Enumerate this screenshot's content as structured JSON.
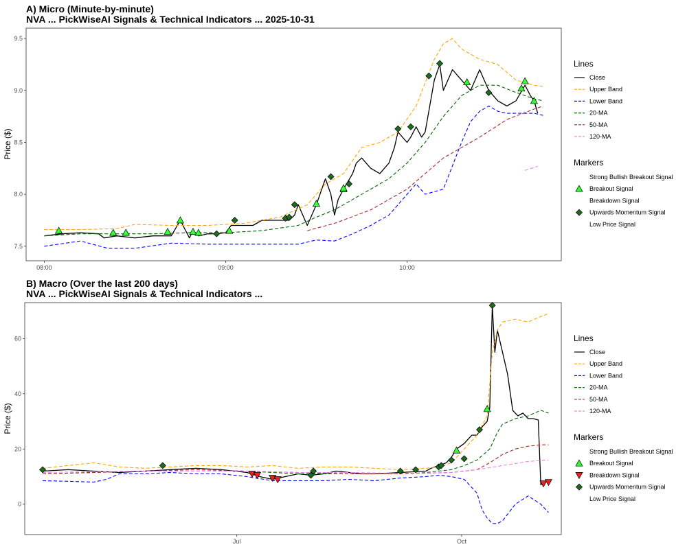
{
  "chart_data": [
    {
      "type": "line",
      "title": "A) Micro (Minute-by-minute)",
      "subtitle": "NVA ... PickWiseAI Signals & Technical Indicators ... 2025-10-31",
      "xlabel": "",
      "ylabel": "Price ($)",
      "xlim": [
        7.9,
        10.85
      ],
      "ylim": [
        7.36,
        9.6
      ],
      "x_ticks": [
        {
          "value": 8.0,
          "label": "08:00"
        },
        {
          "value": 9.0,
          "label": "09:00"
        },
        {
          "value": 10.0,
          "label": "10:00"
        }
      ],
      "y_ticks": [
        {
          "value": 7.5,
          "label": "7.5"
        },
        {
          "value": 8.0,
          "label": "8.0"
        },
        {
          "value": 8.5,
          "label": "8.5"
        },
        {
          "value": 9.0,
          "label": "9.0"
        },
        {
          "value": 9.5,
          "label": "9.5"
        }
      ],
      "grid": false,
      "legend_position": "right",
      "legend": {
        "lines_title": "Lines",
        "lines": [
          {
            "label": "Close",
            "color": "#000000",
            "dash": "solid"
          },
          {
            "label": "Upper Band",
            "color": "#FFA500",
            "dash": "dashed"
          },
          {
            "label": "Lower Band",
            "color": "#0000FF",
            "dash": "dashed"
          },
          {
            "label": "20-MA",
            "color": "#006400",
            "dash": "dashed"
          },
          {
            "label": "50-MA",
            "color": "#A52A2A",
            "dash": "dashed"
          },
          {
            "label": "120-MA",
            "color": "#EE82EE",
            "dash": "dashed"
          }
        ],
        "markers_title": "Markers",
        "markers": [
          {
            "label": "Strong Bullish Breakout Signal",
            "shape": "none"
          },
          {
            "label": "Breakout Signal",
            "shape": "triangle-up",
            "color": "#33FF33"
          },
          {
            "label": "Breakdown Signal",
            "shape": "none"
          },
          {
            "label": "Upwards Momentum Signal",
            "shape": "diamond",
            "color": "#1E6B1E"
          },
          {
            "label": "Low Price Signal",
            "shape": "none"
          }
        ]
      },
      "series": [
        {
          "name": "Close",
          "color": "#000000",
          "dash": "solid",
          "x": [
            8.0,
            8.1,
            8.2,
            8.3,
            8.33,
            8.4,
            8.5,
            8.6,
            8.7,
            8.75,
            8.8,
            8.82,
            8.85,
            8.9,
            8.95,
            9.0,
            9.03,
            9.05,
            9.1,
            9.15,
            9.2,
            9.25,
            9.3,
            9.35,
            9.38,
            9.4,
            9.45,
            9.5,
            9.55,
            9.58,
            9.6,
            9.62,
            9.65,
            9.7,
            9.72,
            9.75,
            9.8,
            9.85,
            9.9,
            9.93,
            9.95,
            10.0,
            10.02,
            10.05,
            10.08,
            10.1,
            10.15,
            10.18,
            10.2,
            10.25,
            10.3,
            10.35,
            10.4,
            10.45,
            10.5,
            10.55,
            10.6,
            10.65,
            10.68,
            10.7,
            10.72
          ],
          "y": [
            7.6,
            7.62,
            7.63,
            7.62,
            7.58,
            7.6,
            7.58,
            7.6,
            7.6,
            7.75,
            7.58,
            7.65,
            7.6,
            7.62,
            7.62,
            7.63,
            7.7,
            7.7,
            7.7,
            7.7,
            7.75,
            7.75,
            7.75,
            7.75,
            7.8,
            7.9,
            7.7,
            7.9,
            8.15,
            8.0,
            7.8,
            7.95,
            8.05,
            8.2,
            8.3,
            8.35,
            8.25,
            8.2,
            8.3,
            8.45,
            8.6,
            8.5,
            8.55,
            8.65,
            8.55,
            8.6,
            9.1,
            9.25,
            9.0,
            9.2,
            9.1,
            9.0,
            9.2,
            9.0,
            8.9,
            8.85,
            8.9,
            9.05,
            8.95,
            8.9,
            8.78
          ]
        },
        {
          "name": "Upper Band",
          "color": "#FFA500",
          "dash": "dashed",
          "x": [
            8.0,
            8.2,
            8.4,
            8.5,
            8.7,
            8.9,
            9.1,
            9.3,
            9.45,
            9.55,
            9.65,
            9.75,
            9.85,
            9.95,
            10.05,
            10.15,
            10.2,
            10.25,
            10.3,
            10.4,
            10.5,
            10.6,
            10.7,
            10.75
          ],
          "y": [
            7.66,
            7.66,
            7.67,
            7.71,
            7.7,
            7.7,
            7.72,
            7.78,
            7.9,
            8.1,
            8.2,
            8.45,
            8.5,
            8.6,
            8.85,
            9.3,
            9.45,
            9.5,
            9.4,
            9.3,
            9.25,
            9.1,
            9.05,
            9.04
          ]
        },
        {
          "name": "Lower Band",
          "color": "#0000FF",
          "dash": "dashed",
          "x": [
            8.0,
            8.2,
            8.35,
            8.5,
            8.7,
            8.9,
            9.1,
            9.3,
            9.4,
            9.5,
            9.6,
            9.7,
            9.8,
            9.9,
            9.95,
            10.05,
            10.1,
            10.2,
            10.3,
            10.35,
            10.4,
            10.45,
            10.5,
            10.55,
            10.6,
            10.7,
            10.75
          ],
          "y": [
            7.5,
            7.55,
            7.48,
            7.48,
            7.53,
            7.52,
            7.52,
            7.52,
            7.52,
            7.56,
            7.55,
            7.62,
            7.7,
            7.8,
            7.9,
            8.1,
            8.0,
            8.05,
            8.5,
            8.7,
            8.8,
            8.85,
            8.8,
            8.78,
            8.78,
            8.78,
            8.76
          ]
        },
        {
          "name": "20-MA",
          "color": "#006400",
          "dash": "dashed",
          "x": [
            8.0,
            8.2,
            8.4,
            8.6,
            8.8,
            9.0,
            9.2,
            9.4,
            9.5,
            9.6,
            9.7,
            9.8,
            9.9,
            10.0,
            10.1,
            10.2,
            10.3,
            10.4,
            10.5,
            10.6,
            10.7,
            10.75
          ],
          "y": [
            7.6,
            7.62,
            7.62,
            7.62,
            7.63,
            7.63,
            7.65,
            7.7,
            7.78,
            7.85,
            7.95,
            8.05,
            8.15,
            8.3,
            8.5,
            8.75,
            8.95,
            9.05,
            9.05,
            8.98,
            8.92,
            8.9
          ]
        },
        {
          "name": "50-MA",
          "color": "#A52A2A",
          "dash": "dashed",
          "x": [
            9.45,
            9.6,
            9.8,
            10.0,
            10.2,
            10.4,
            10.55,
            10.7,
            10.75
          ],
          "y": [
            7.65,
            7.72,
            7.85,
            8.05,
            8.35,
            8.55,
            8.72,
            8.82,
            8.85
          ]
        },
        {
          "name": "120-MA",
          "color": "#EE82EE",
          "dash": "dashed",
          "x": [
            10.65,
            10.72
          ],
          "y": [
            8.23,
            8.27
          ]
        }
      ],
      "markers": [
        {
          "type": "Breakout Signal",
          "x": [
            8.08,
            8.38,
            8.45,
            8.68,
            8.75,
            8.82,
            8.85,
            9.02,
            9.5,
            9.65,
            9.65,
            10.33,
            10.63,
            10.65,
            10.7
          ],
          "y": [
            7.65,
            7.63,
            7.63,
            7.64,
            7.75,
            7.64,
            7.63,
            7.65,
            7.91,
            8.05,
            8.06,
            9.08,
            9.02,
            9.09,
            8.9
          ]
        },
        {
          "type": "Upwards Momentum Signal",
          "x": [
            8.95,
            9.05,
            9.33,
            9.35,
            9.38,
            9.58,
            9.68,
            9.95,
            10.02,
            10.12,
            10.18,
            10.45
          ],
          "y": [
            7.62,
            7.75,
            7.77,
            7.78,
            7.9,
            8.17,
            8.1,
            8.63,
            8.65,
            9.14,
            9.26,
            8.98
          ]
        }
      ]
    },
    {
      "type": "line",
      "title": "B) Macro (Over the last 200 days)",
      "subtitle": "NVA ... PickWiseAI Signals & Technical Indicators ...",
      "xlabel": "",
      "ylabel": "Price ($)",
      "xlim": [
        -7,
        203
      ],
      "ylim": [
        -11,
        73
      ],
      "x_ticks": [
        {
          "value": 76,
          "label": "Jul"
        },
        {
          "value": 164,
          "label": "Oct"
        }
      ],
      "y_ticks": [
        {
          "value": 0,
          "label": "0"
        },
        {
          "value": 20,
          "label": "20"
        },
        {
          "value": 40,
          "label": "40"
        },
        {
          "value": 60,
          "label": "60"
        }
      ],
      "grid": false,
      "legend_position": "right",
      "legend": {
        "lines_title": "Lines",
        "lines": [
          {
            "label": "Close",
            "color": "#000000",
            "dash": "solid"
          },
          {
            "label": "Upper Band",
            "color": "#FFA500",
            "dash": "dashed"
          },
          {
            "label": "Lower Band",
            "color": "#0000FF",
            "dash": "dashed"
          },
          {
            "label": "20-MA",
            "color": "#006400",
            "dash": "dashed"
          },
          {
            "label": "50-MA",
            "color": "#A52A2A",
            "dash": "dashed"
          },
          {
            "label": "120-MA",
            "color": "#EE82EE",
            "dash": "dashed"
          }
        ],
        "markers_title": "Markers",
        "markers": [
          {
            "label": "Strong Bullish Breakout Signal",
            "shape": "none"
          },
          {
            "label": "Breakout Signal",
            "shape": "triangle-up",
            "color": "#33FF33"
          },
          {
            "label": "Breakdown Signal",
            "shape": "triangle-down",
            "color": "#EE2222"
          },
          {
            "label": "Upwards Momentum Signal",
            "shape": "diamond",
            "color": "#1E6B1E"
          },
          {
            "label": "Low Price Signal",
            "shape": "none"
          }
        ]
      },
      "series": [
        {
          "name": "Close",
          "color": "#000000",
          "dash": "solid",
          "x": [
            0,
            10,
            20,
            30,
            40,
            50,
            60,
            70,
            80,
            85,
            90,
            95,
            100,
            105,
            110,
            115,
            120,
            125,
            130,
            140,
            150,
            152,
            155,
            158,
            160,
            162,
            165,
            168,
            170,
            172,
            174,
            175,
            176,
            177,
            178,
            180,
            182,
            184,
            186,
            188,
            190,
            192,
            194,
            195,
            196,
            198
          ],
          "y": [
            12,
            12.5,
            12,
            11.5,
            12,
            12.5,
            13,
            12.5,
            11.5,
            10,
            9,
            10,
            11,
            10.5,
            11,
            12,
            11.5,
            11,
            11,
            11.5,
            12,
            13,
            14,
            15,
            17,
            20,
            22,
            25,
            25,
            28,
            30,
            35,
            72,
            55,
            63,
            55,
            47,
            34,
            32,
            33,
            31,
            31,
            30.5,
            7,
            8,
            8
          ]
        },
        {
          "name": "Upper Band",
          "color": "#FFA500",
          "dash": "dashed",
          "x": [
            0,
            10,
            20,
            30,
            40,
            50,
            60,
            70,
            80,
            90,
            100,
            110,
            120,
            130,
            140,
            150,
            155,
            160,
            165,
            170,
            174,
            176,
            178,
            180,
            185,
            190,
            195,
            198
          ],
          "y": [
            13,
            14,
            15,
            13.5,
            13,
            13.5,
            14,
            14,
            13.5,
            14,
            13,
            13.5,
            13.5,
            13,
            12.5,
            13,
            13.5,
            15,
            20,
            25,
            32,
            55,
            63,
            66,
            67,
            66,
            68,
            69
          ]
        },
        {
          "name": "Lower Band",
          "color": "#0000FF",
          "dash": "dashed",
          "x": [
            0,
            10,
            20,
            25,
            30,
            40,
            50,
            60,
            70,
            80,
            90,
            100,
            110,
            120,
            130,
            140,
            150,
            155,
            160,
            165,
            170,
            172,
            174,
            176,
            178,
            180,
            185,
            190,
            195,
            198
          ],
          "y": [
            8.5,
            8.3,
            8,
            9,
            11,
            11,
            11.5,
            11,
            11,
            10,
            8.5,
            8.5,
            8.5,
            9,
            8.5,
            9.5,
            10,
            10.5,
            10,
            9,
            4,
            -2,
            -5,
            -7,
            -7,
            -6,
            0,
            3,
            0,
            -3
          ]
        },
        {
          "name": "20-MA",
          "color": "#006400",
          "dash": "dashed",
          "x": [
            0,
            20,
            40,
            60,
            80,
            100,
            120,
            140,
            150,
            160,
            165,
            170,
            175,
            178,
            180,
            185,
            190,
            195,
            198
          ],
          "y": [
            11,
            11.5,
            12,
            12,
            12,
            11,
            11,
            11,
            11.5,
            12.5,
            14,
            16,
            20,
            26,
            29,
            31,
            32,
            34,
            33
          ]
        },
        {
          "name": "50-MA",
          "color": "#A52A2A",
          "dash": "dashed",
          "x": [
            0,
            20,
            40,
            60,
            80,
            100,
            120,
            140,
            160,
            170,
            175,
            180,
            185,
            190,
            195,
            198
          ],
          "y": [
            11,
            11.5,
            12,
            12.5,
            12,
            11.5,
            11,
            11,
            11.5,
            12.5,
            15,
            18,
            20,
            21,
            21.5,
            21.5
          ]
        },
        {
          "name": "120-MA",
          "color": "#EE82EE",
          "dash": "dashed",
          "x": [
            0,
            20,
            40,
            60,
            80,
            100,
            120,
            140,
            160,
            170,
            180,
            190,
            198
          ],
          "y": [
            11.5,
            11.8,
            12,
            12,
            12,
            11.5,
            11.5,
            11.2,
            11.5,
            12.5,
            14,
            15.5,
            16
          ]
        }
      ],
      "markers": [
        {
          "type": "Breakout Signal",
          "x": [
            162,
            174
          ],
          "y": [
            19.5,
            34.5
          ]
        },
        {
          "type": "Breakdown Signal",
          "x": [
            82,
            84,
            90,
            92,
            196,
            198
          ],
          "y": [
            11,
            10.5,
            9.5,
            9,
            7.5,
            8
          ]
        },
        {
          "type": "Upwards Momentum Signal",
          "x": [
            0,
            47,
            105,
            106,
            140,
            146,
            155,
            156,
            160,
            165,
            171,
            176
          ],
          "y": [
            12.5,
            14,
            10.5,
            12,
            12,
            12.5,
            13.5,
            14,
            16,
            16.5,
            27,
            72
          ]
        }
      ]
    }
  ]
}
